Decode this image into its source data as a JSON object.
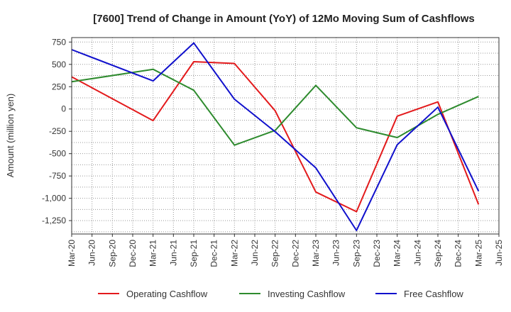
{
  "chart_data": {
    "type": "line",
    "title": "[7600]  Trend of Change in Amount (YoY) of 12Mo Moving Sum of Cashflows",
    "xlabel": "",
    "ylabel": "Amount (million yen)",
    "ylim": [
      -1400,
      800
    ],
    "yticks": [
      750,
      500,
      250,
      0,
      -250,
      -500,
      -750,
      -1000,
      -1250
    ],
    "ytick_labels": [
      "750",
      "500",
      "250",
      "0",
      "-250",
      "-500",
      "-750",
      "-1,000",
      "-1,250"
    ],
    "categories": [
      "Mar-20",
      "Jun-20",
      "Sep-20",
      "Dec-20",
      "Mar-21",
      "Jun-21",
      "Sep-21",
      "Dec-21",
      "Mar-22",
      "Jun-22",
      "Sep-22",
      "Dec-22",
      "Mar-23",
      "Jun-23",
      "Sep-23",
      "Dec-23",
      "Mar-24",
      "Jun-24",
      "Sep-24",
      "Dec-24",
      "Mar-25",
      "Jun-25"
    ],
    "grid": true,
    "legend_position": "bottom",
    "series": [
      {
        "name": "Operating Cashflow",
        "color": "#e31a1c",
        "points": [
          {
            "x": "Mar-20",
            "y": 360
          },
          {
            "x": "Mar-21",
            "y": -130
          },
          {
            "x": "Sep-21",
            "y": 530
          },
          {
            "x": "Mar-22",
            "y": 510
          },
          {
            "x": "Sep-22",
            "y": -20
          },
          {
            "x": "Mar-23",
            "y": -930
          },
          {
            "x": "Sep-23",
            "y": -1150
          },
          {
            "x": "Mar-24",
            "y": -80
          },
          {
            "x": "Sep-24",
            "y": 80
          },
          {
            "x": "Mar-25",
            "y": -1070
          }
        ]
      },
      {
        "name": "Investing Cashflow",
        "color": "#2e8b2e",
        "points": [
          {
            "x": "Mar-20",
            "y": 305
          },
          {
            "x": "Mar-21",
            "y": 445
          },
          {
            "x": "Sep-21",
            "y": 210
          },
          {
            "x": "Mar-22",
            "y": -405
          },
          {
            "x": "Sep-22",
            "y": -240
          },
          {
            "x": "Mar-23",
            "y": 265
          },
          {
            "x": "Sep-23",
            "y": -210
          },
          {
            "x": "Mar-24",
            "y": -320
          },
          {
            "x": "Sep-24",
            "y": -60
          },
          {
            "x": "Mar-25",
            "y": 140
          }
        ]
      },
      {
        "name": "Free Cashflow",
        "color": "#1010cc",
        "points": [
          {
            "x": "Mar-20",
            "y": 665
          },
          {
            "x": "Mar-21",
            "y": 315
          },
          {
            "x": "Sep-21",
            "y": 740
          },
          {
            "x": "Mar-22",
            "y": 110
          },
          {
            "x": "Sep-22",
            "y": -255
          },
          {
            "x": "Mar-23",
            "y": -660
          },
          {
            "x": "Sep-23",
            "y": -1360
          },
          {
            "x": "Mar-24",
            "y": -400
          },
          {
            "x": "Sep-24",
            "y": 20
          },
          {
            "x": "Mar-25",
            "y": -920
          }
        ]
      }
    ]
  }
}
